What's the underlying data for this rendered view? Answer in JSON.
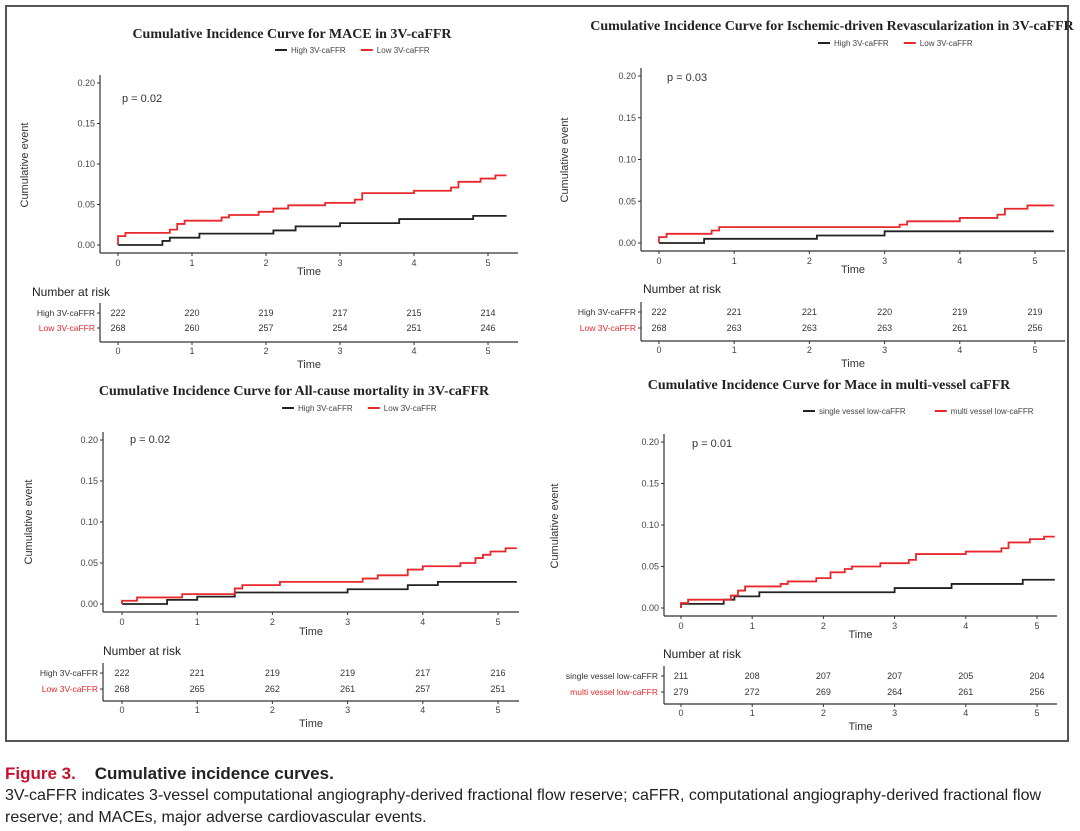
{
  "figure": {
    "label": "Figure 3.",
    "title": "Cumulative incidence curves.",
    "body": "3V-caFFR indicates 3-vessel computational angiography-derived fractional flow reserve; caFFR, computational angiography-derived fractional flow reserve; and MACEs, major adverse cardiovascular events.",
    "label_color": "#c8102e"
  },
  "chart_data": [
    {
      "type": "line",
      "title": "Cumulative Incidence Curve for MACE in 3V-caFFR",
      "xlabel": "Time",
      "ylabel": "Cumulative event",
      "xlim": [
        0,
        5.25
      ],
      "ylim": [
        0,
        0.2
      ],
      "xticks": [
        "0",
        "1",
        "2",
        "3",
        "4",
        "5"
      ],
      "yticks": [
        "0.00",
        "0.05",
        "0.10",
        "0.15",
        "0.20"
      ],
      "annotation": "p = 0.02",
      "legend_position": "top-center",
      "risk_table_title": "Number at risk",
      "risk_table_xlabel": "Time",
      "series": [
        {
          "name": "High 3V-caFFR",
          "color": "#222222",
          "x": [
            0,
            0.6,
            0.7,
            1.1,
            2.1,
            2.4,
            3.0,
            3.8,
            4.8,
            5.25
          ],
          "y": [
            0.0,
            0.005,
            0.009,
            0.014,
            0.018,
            0.023,
            0.027,
            0.032,
            0.036,
            0.036
          ],
          "risk": [
            "222",
            "220",
            "219",
            "217",
            "215",
            "214"
          ]
        },
        {
          "name": "Low 3V-caFFR",
          "color": "#e8282b",
          "x": [
            0,
            0.1,
            0.7,
            0.8,
            0.9,
            1.4,
            1.5,
            1.9,
            2.1,
            2.3,
            2.8,
            3.2,
            3.3,
            4.0,
            4.5,
            4.6,
            4.9,
            5.1,
            5.25
          ],
          "y": [
            0.011,
            0.015,
            0.019,
            0.026,
            0.03,
            0.034,
            0.037,
            0.041,
            0.045,
            0.049,
            0.052,
            0.056,
            0.064,
            0.067,
            0.071,
            0.078,
            0.082,
            0.086,
            0.086
          ],
          "risk": [
            "268",
            "260",
            "257",
            "254",
            "251",
            "246"
          ]
        }
      ]
    },
    {
      "type": "line",
      "title": "Cumulative Incidence Curve for Ischemic-driven Revascularization in 3V-caFFR",
      "xlabel": "Time",
      "ylabel": "Cumulative event",
      "xlim": [
        0,
        5.25
      ],
      "ylim": [
        0,
        0.2
      ],
      "xticks": [
        "0",
        "1",
        "2",
        "3",
        "4",
        "5"
      ],
      "yticks": [
        "0.00",
        "0.05",
        "0.10",
        "0.15",
        "0.20"
      ],
      "annotation": "p = 0.03",
      "legend_position": "top-center",
      "risk_table_title": "Number at risk",
      "risk_table_xlabel": "Time",
      "series": [
        {
          "name": "High 3V-caFFR",
          "color": "#222222",
          "x": [
            0,
            0.6,
            2.1,
            3.0,
            5.25
          ],
          "y": [
            0.0,
            0.005,
            0.009,
            0.014,
            0.014
          ],
          "risk": [
            "222",
            "221",
            "221",
            "220",
            "219",
            "219"
          ]
        },
        {
          "name": "Low 3V-caFFR",
          "color": "#e8282b",
          "x": [
            0,
            0.1,
            0.7,
            0.8,
            3.2,
            3.3,
            4.0,
            4.5,
            4.6,
            4.9,
            5.25
          ],
          "y": [
            0.007,
            0.011,
            0.015,
            0.019,
            0.022,
            0.026,
            0.03,
            0.034,
            0.041,
            0.045,
            0.045
          ],
          "risk": [
            "268",
            "263",
            "263",
            "263",
            "261",
            "256"
          ]
        }
      ]
    },
    {
      "type": "line",
      "title": "Cumulative Incidence Curve for All-cause mortality in 3V-caFFR",
      "xlabel": "Time",
      "ylabel": "Cumulative event",
      "xlim": [
        0,
        5.25
      ],
      "ylim": [
        0,
        0.2
      ],
      "xticks": [
        "0",
        "1",
        "2",
        "3",
        "4",
        "5"
      ],
      "yticks": [
        "0.00",
        "0.05",
        "0.10",
        "0.15",
        "0.20"
      ],
      "annotation": "p = 0.02",
      "legend_position": "top-center",
      "risk_table_title": "Number at risk",
      "risk_table_xlabel": "Time",
      "series": [
        {
          "name": "High 3V-caFFR",
          "color": "#222222",
          "x": [
            0,
            0.6,
            1.0,
            1.5,
            3.0,
            3.8,
            4.2,
            5.25
          ],
          "y": [
            0.0,
            0.005,
            0.009,
            0.014,
            0.018,
            0.023,
            0.027,
            0.027
          ],
          "risk": [
            "222",
            "221",
            "219",
            "219",
            "217",
            "216"
          ]
        },
        {
          "name": "Low 3V-caFFR",
          "color": "#e8282b",
          "x": [
            0,
            0.2,
            0.8,
            1.5,
            1.6,
            2.1,
            3.2,
            3.4,
            3.8,
            4.0,
            4.5,
            4.7,
            4.8,
            4.9,
            5.1,
            5.25
          ],
          "y": [
            0.004,
            0.008,
            0.012,
            0.019,
            0.023,
            0.027,
            0.031,
            0.035,
            0.042,
            0.046,
            0.05,
            0.056,
            0.06,
            0.064,
            0.068,
            0.068
          ],
          "risk": [
            "268",
            "265",
            "262",
            "261",
            "257",
            "251"
          ]
        }
      ]
    },
    {
      "type": "line",
      "title": "Cumulative Incidence Curve for Mace in multi-vessel caFFR",
      "xlabel": "Time",
      "ylabel": "Cumulative event",
      "xlim": [
        0,
        5.25
      ],
      "ylim": [
        0,
        0.2
      ],
      "xticks": [
        "0",
        "1",
        "2",
        "3",
        "4",
        "5"
      ],
      "yticks": [
        "0.00",
        "0.05",
        "0.10",
        "0.15",
        "0.20"
      ],
      "annotation": "p = 0.01",
      "legend_position": "top-right",
      "risk_table_title": "Number at risk",
      "risk_table_xlabel": "Time",
      "series": [
        {
          "name": "single vessel low-caFFR",
          "color": "#222222",
          "x": [
            0,
            0.6,
            0.75,
            1.1,
            3.0,
            3.8,
            4.8,
            5.25
          ],
          "y": [
            0.005,
            0.01,
            0.014,
            0.019,
            0.024,
            0.029,
            0.034,
            0.034
          ],
          "risk": [
            "211",
            "208",
            "207",
            "207",
            "205",
            "204"
          ]
        },
        {
          "name": "multi vessel low-caFFR",
          "color": "#e8282b",
          "x": [
            0,
            0.1,
            0.7,
            0.8,
            0.9,
            1.4,
            1.5,
            1.9,
            2.1,
            2.3,
            2.4,
            2.8,
            3.2,
            3.3,
            4.0,
            4.5,
            4.6,
            4.9,
            5.1,
            5.25
          ],
          "y": [
            0.006,
            0.01,
            0.015,
            0.021,
            0.026,
            0.029,
            0.032,
            0.036,
            0.043,
            0.047,
            0.05,
            0.054,
            0.058,
            0.065,
            0.068,
            0.072,
            0.079,
            0.083,
            0.086,
            0.086
          ],
          "risk": [
            "279",
            "272",
            "269",
            "264",
            "261",
            "256"
          ]
        }
      ]
    }
  ]
}
